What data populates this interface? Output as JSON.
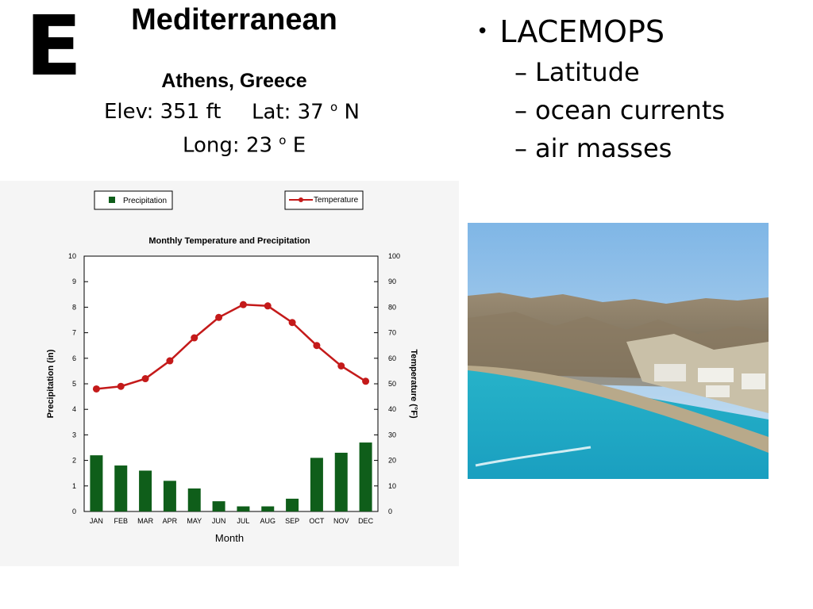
{
  "slide": {
    "letter": "E",
    "title": "Mediterranean",
    "subtitle": "Athens, Greece",
    "elev": "Elev: 351 ft",
    "lat_text": "Lat: 37",
    "lat_dir": "N",
    "long_text": "Long: 23",
    "long_dir": "E",
    "degree_mark": "o"
  },
  "bullets": {
    "main": "LACEMOPS",
    "items": [
      "Latitude",
      "ocean currents",
      "air masses"
    ]
  },
  "photo": {
    "icon": "coastal-beach-photo"
  },
  "chart_data": {
    "type": "bar",
    "title": "Monthly Temperature and Precipitation",
    "xlabel": "Month",
    "ylabel": "Precipitation (in)",
    "y2label": "Temperature (°F)",
    "categories": [
      "JAN",
      "FEB",
      "MAR",
      "APR",
      "MAY",
      "JUN",
      "JUL",
      "AUG",
      "SEP",
      "OCT",
      "NOV",
      "DEC"
    ],
    "ylim": [
      0,
      10
    ],
    "y2lim": [
      0,
      100
    ],
    "yticks": [
      "0",
      "1",
      "2",
      "3",
      "4",
      "5",
      "6",
      "7",
      "8",
      "9",
      "10"
    ],
    "y2ticks": [
      "0",
      "10",
      "20",
      "30",
      "40",
      "50",
      "60",
      "70",
      "80",
      "90",
      "100"
    ],
    "series": [
      {
        "name": "Precipitation",
        "type": "bar",
        "axis": "left",
        "color": "#0f5e1a",
        "values": [
          2.2,
          1.8,
          1.6,
          1.2,
          0.9,
          0.4,
          0.2,
          0.2,
          0.5,
          2.1,
          2.3,
          2.7
        ]
      },
      {
        "name": "Temperature",
        "type": "line",
        "axis": "right",
        "color": "#c41a1a",
        "values": [
          48,
          49,
          52,
          59,
          68,
          76,
          81,
          80.5,
          74,
          65,
          57,
          51
        ]
      }
    ],
    "legend": "top"
  }
}
